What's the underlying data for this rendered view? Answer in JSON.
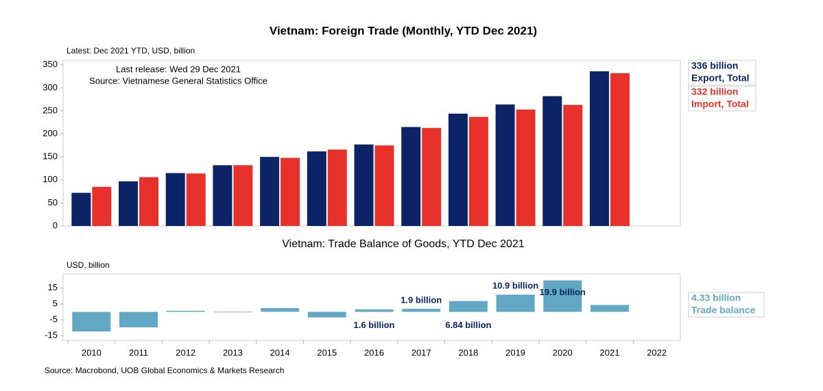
{
  "chart_data": [
    {
      "type": "bar",
      "title": "Vietnam: Foreign Trade (Monthly, YTD Dec 2021)",
      "subtitle": "Latest: Dec 2021 YTD, USD, billion",
      "annotations": [
        "Last release: Wed 29 Dec 2021",
        "Source: Vietnamese General Statistics Office"
      ],
      "categories": [
        null,
        null,
        null,
        null,
        null,
        null,
        null,
        null,
        null,
        null,
        null,
        null,
        null
      ],
      "series": [
        {
          "name": "Export, Total",
          "color": "#0c2466",
          "values": [
            72,
            97,
            115,
            132,
            150,
            162,
            177,
            215,
            244,
            264,
            282,
            336,
            null
          ],
          "value_labels": [
            null,
            null,
            null,
            null,
            null,
            null,
            null,
            null,
            null,
            null,
            null,
            "336 billion",
            null
          ]
        },
        {
          "name": "Import, Total",
          "color": "#e8312a",
          "values": [
            85,
            106,
            114,
            132,
            148,
            166,
            175,
            213,
            237,
            253,
            263,
            332,
            null
          ],
          "value_labels": [
            null,
            null,
            null,
            null,
            null,
            null,
            null,
            null,
            null,
            null,
            null,
            "332 billion",
            null
          ]
        }
      ],
      "ylim": [
        0,
        360
      ],
      "yticks": [
        0,
        50,
        100,
        150,
        200,
        250,
        300,
        350
      ],
      "grid": false
    },
    {
      "type": "bar",
      "title": "Vietnam: Trade Balance of Goods, YTD Dec 2021",
      "subtitle": "USD, billion",
      "source": "Source: Macrobond, UOB Global Economics & Markets Research",
      "categories": [
        "2010",
        "2011",
        "2012",
        "2013",
        "2014",
        "2015",
        "2016",
        "2017",
        "2018",
        "2019",
        "2020",
        "2021",
        "2022"
      ],
      "series": [
        {
          "name": "Trade balance",
          "color": "#62a8c4",
          "values": [
            -12.4,
            -9.8,
            0.7,
            0.06,
            2.4,
            -3.5,
            1.6,
            1.9,
            6.84,
            10.9,
            19.9,
            4.33,
            null
          ],
          "value_labels": [
            null,
            null,
            null,
            null,
            null,
            null,
            "1.6 billion",
            "1.9 billion",
            "6.84 billion",
            "10.9 billion",
            "19.9 billion",
            "4.33 billion",
            null
          ]
        }
      ],
      "ylim": [
        -18,
        24
      ],
      "yticks": [
        -15,
        -5,
        5,
        15
      ],
      "grid": false
    }
  ]
}
